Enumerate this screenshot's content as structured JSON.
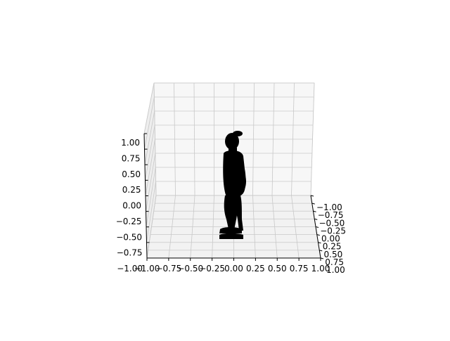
{
  "chart_data": {
    "type": "scatter",
    "projection": "3d",
    "axes": {
      "x": {
        "range": [
          -1.0,
          1.0
        ],
        "ticks": [
          "−1.00",
          "−0.75",
          "−0.50",
          "−0.25",
          "0.00",
          "0.25",
          "0.50",
          "0.75",
          "1.00"
        ]
      },
      "y": {
        "range": [
          -1.0,
          1.0
        ],
        "ticks": [
          "−1.00",
          "−0.75",
          "−0.50",
          "−0.25",
          "0.00",
          "0.25",
          "0.50",
          "0.75",
          "1.00"
        ]
      },
      "z": {
        "range": [
          -1.0,
          1.0
        ],
        "ticks": [
          "−1.00",
          "−0.75",
          "−0.50",
          "−0.25",
          "0.00",
          "0.25",
          "0.50",
          "0.75",
          "1.00"
        ]
      }
    },
    "grid": true,
    "marker_color": "#000000",
    "pane_color": "#f2f2f2",
    "series": [
      {
        "shape": "human-figure-point-cloud",
        "view": "side"
      }
    ]
  }
}
